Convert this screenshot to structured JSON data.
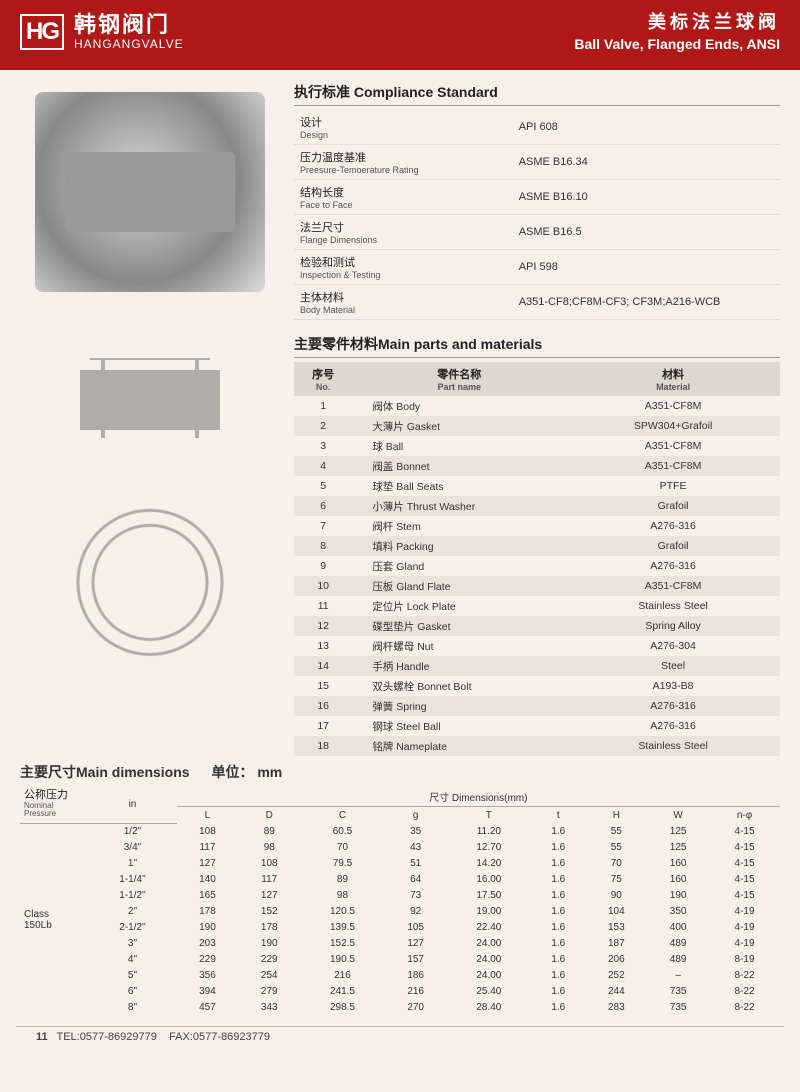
{
  "header": {
    "logo_mark": "HG",
    "brand_cn": "韩钢阀门",
    "brand_en": "HANGANGVALVE",
    "title_cn": "美标法兰球阀",
    "title_en": "Ball Valve, Flanged Ends, ANSI"
  },
  "compliance": {
    "title": "执行标准 Compliance Standard",
    "rows": [
      {
        "cn": "设计",
        "en": "Design",
        "val": "API 608"
      },
      {
        "cn": "压力温度基准",
        "en": "Preesure-Temoerature Rating",
        "val": "ASME B16.34"
      },
      {
        "cn": "结构长度",
        "en": "Face to Face",
        "val": "ASME B16.10"
      },
      {
        "cn": "法兰尺寸",
        "en": "Flange Dimensions",
        "val": "ASME B16.5"
      },
      {
        "cn": "检验和测试",
        "en": "Inspection & Testing",
        "val": "API 598"
      },
      {
        "cn": "主体材料",
        "en": "Body Material",
        "val": "A351-CF8;CF8M-CF3; CF3M;A216-WCB"
      }
    ]
  },
  "parts": {
    "title": "主要零件材料Main parts and materials",
    "headers": {
      "no_cn": "序号",
      "no_en": "No.",
      "name_cn": "零件名称",
      "name_en": "Part name",
      "mat_cn": "材料",
      "mat_en": "Material"
    },
    "rows": [
      {
        "no": "1",
        "name": "阀体 Body",
        "mat": "A351-CF8M"
      },
      {
        "no": "2",
        "name": "大薄片 Gasket",
        "mat": "SPW304+Grafoil"
      },
      {
        "no": "3",
        "name": "球 Ball",
        "mat": "A351-CF8M"
      },
      {
        "no": "4",
        "name": "阀盖 Bonnet",
        "mat": "A351-CF8M"
      },
      {
        "no": "5",
        "name": "球垫 Ball Seats",
        "mat": "PTFE"
      },
      {
        "no": "6",
        "name": "小薄片 Thrust Washer",
        "mat": "Grafoil"
      },
      {
        "no": "7",
        "name": "阀杆 Stem",
        "mat": "A276-316"
      },
      {
        "no": "8",
        "name": "填料 Packing",
        "mat": "Grafoil"
      },
      {
        "no": "9",
        "name": "压套 Gland",
        "mat": "A276-316"
      },
      {
        "no": "10",
        "name": "压板 Gland Flate",
        "mat": "A351-CF8M"
      },
      {
        "no": "11",
        "name": "定位片 Lock Plate",
        "mat": "Stainless Steel"
      },
      {
        "no": "12",
        "name": "碟型垫片 Gasket",
        "mat": "Spring Alloy"
      },
      {
        "no": "13",
        "name": "阀杆螺母 Nut",
        "mat": "A276-304"
      },
      {
        "no": "14",
        "name": "手柄 Handle",
        "mat": "Steel"
      },
      {
        "no": "15",
        "name": "双头螺栓 Bonnet Bolt",
        "mat": "A193-B8"
      },
      {
        "no": "16",
        "name": "弹簧 Spring",
        "mat": "A276-316"
      },
      {
        "no": "17",
        "name": "钢球 Steel Ball",
        "mat": "A276-316"
      },
      {
        "no": "18",
        "name": "铭牌 Nameplate",
        "mat": "Stainless Steel"
      }
    ]
  },
  "dims": {
    "title": "主要尺寸Main dimensions",
    "unit_label": "单位：",
    "unit": "mm",
    "np_cn": "公称压力",
    "np_en": "Nominal Pressure",
    "dim_label": "尺寸 Dimensions(mm)",
    "cols": [
      "in",
      "L",
      "D",
      "C",
      "g",
      "T",
      "t",
      "H",
      "W",
      "n-φ"
    ],
    "class": "Class\n150Lb",
    "rows": [
      [
        "1/2\"",
        "108",
        "89",
        "60.5",
        "35",
        "11.20",
        "1.6",
        "55",
        "125",
        "4-15"
      ],
      [
        "3/4\"",
        "117",
        "98",
        "70",
        "43",
        "12.70",
        "1.6",
        "55",
        "125",
        "4-15"
      ],
      [
        "1\"",
        "127",
        "108",
        "79.5",
        "51",
        "14.20",
        "1.6",
        "70",
        "160",
        "4-15"
      ],
      [
        "1-1/4\"",
        "140",
        "117",
        "89",
        "64",
        "16.00",
        "1.6",
        "75",
        "160",
        "4-15"
      ],
      [
        "1-1/2\"",
        "165",
        "127",
        "98",
        "73",
        "17.50",
        "1.6",
        "90",
        "190",
        "4-15"
      ],
      [
        "2\"",
        "178",
        "152",
        "120.5",
        "92",
        "19.00",
        "1.6",
        "104",
        "350",
        "4-19"
      ],
      [
        "2-1/2\"",
        "190",
        "178",
        "139.5",
        "105",
        "22.40",
        "1.6",
        "153",
        "400",
        "4-19"
      ],
      [
        "3\"",
        "203",
        "190",
        "152.5",
        "127",
        "24.00",
        "1.6",
        "187",
        "489",
        "4-19"
      ],
      [
        "4\"",
        "229",
        "229",
        "190.5",
        "157",
        "24.00",
        "1.6",
        "206",
        "489",
        "8-19"
      ],
      [
        "5\"",
        "356",
        "254",
        "216",
        "186",
        "24.00",
        "1.6",
        "252",
        "–",
        "8-22"
      ],
      [
        "6\"",
        "394",
        "279",
        "241.5",
        "216",
        "25.40",
        "1.6",
        "244",
        "735",
        "8-22"
      ],
      [
        "8\"",
        "457",
        "343",
        "298.5",
        "270",
        "28.40",
        "1.6",
        "283",
        "735",
        "8-22"
      ]
    ]
  },
  "footer": {
    "page": "11",
    "tel_label": "TEL:",
    "tel": "0577-86929779",
    "fax_label": "FAX:",
    "fax": "0577-86923779"
  }
}
